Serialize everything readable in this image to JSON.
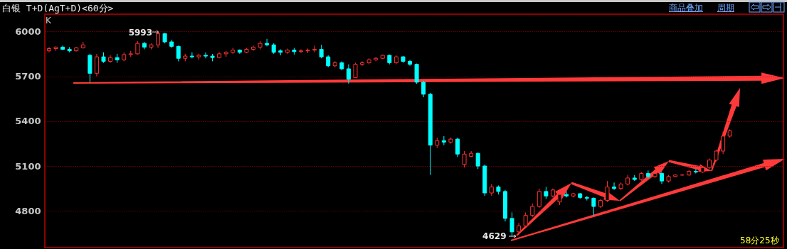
{
  "chart_data": {
    "type": "candlestick",
    "title": "白银 T+D(AgT+D)<60分>",
    "annotations": [
      "K",
      "5993",
      "4629",
      "58分25秒",
      "商品叠加",
      "周期"
    ],
    "categories": [
      null,
      null,
      null,
      null,
      null,
      null,
      null,
      null,
      null,
      null,
      null,
      null,
      null,
      null,
      null,
      null,
      null,
      null,
      null,
      null,
      null,
      null,
      null,
      null,
      null,
      null,
      null,
      null,
      null,
      null,
      null,
      null,
      null,
      null,
      null,
      null,
      null,
      null,
      null,
      null,
      null,
      null,
      null,
      null,
      null,
      null,
      null,
      null,
      null,
      null,
      null,
      null,
      null,
      null,
      null,
      null,
      null,
      null,
      null,
      null,
      null,
      null,
      null,
      null,
      null,
      null,
      null,
      null,
      null,
      null,
      null,
      null,
      null,
      null,
      null,
      null,
      null,
      null,
      null,
      null,
      null,
      null,
      null,
      null,
      null,
      null,
      null,
      null,
      null,
      null,
      null,
      null,
      null,
      null,
      null,
      null,
      null,
      null,
      null,
      null,
      null
    ],
    "ohlc": [
      [
        5870,
        5895,
        5860,
        5885
      ],
      [
        5885,
        5900,
        5870,
        5895
      ],
      [
        5895,
        5905,
        5875,
        5880
      ],
      [
        5880,
        5895,
        5860,
        5870
      ],
      [
        5870,
        5895,
        5865,
        5890
      ],
      [
        5890,
        5930,
        5885,
        5910
      ],
      [
        5840,
        5850,
        5660,
        5720
      ],
      [
        5720,
        5850,
        5700,
        5830
      ],
      [
        5830,
        5860,
        5790,
        5800
      ],
      [
        5800,
        5840,
        5790,
        5825
      ],
      [
        5825,
        5850,
        5790,
        5810
      ],
      [
        5810,
        5860,
        5800,
        5845
      ],
      [
        5845,
        5870,
        5830,
        5850
      ],
      [
        5850,
        5935,
        5845,
        5920
      ],
      [
        5920,
        5930,
        5880,
        5895
      ],
      [
        5895,
        5920,
        5880,
        5910
      ],
      [
        5910,
        5993,
        5890,
        5985
      ],
      [
        5985,
        5990,
        5920,
        5930
      ],
      [
        5930,
        5945,
        5890,
        5900
      ],
      [
        5900,
        5905,
        5800,
        5820
      ],
      [
        5820,
        5850,
        5800,
        5835
      ],
      [
        5835,
        5860,
        5820,
        5830
      ],
      [
        5830,
        5850,
        5810,
        5840
      ],
      [
        5840,
        5860,
        5820,
        5835
      ],
      [
        5835,
        5850,
        5800,
        5825
      ],
      [
        5825,
        5860,
        5820,
        5850
      ],
      [
        5850,
        5870,
        5830,
        5860
      ],
      [
        5860,
        5890,
        5850,
        5875
      ],
      [
        5875,
        5880,
        5850,
        5860
      ],
      [
        5860,
        5890,
        5855,
        5880
      ],
      [
        5880,
        5905,
        5870,
        5895
      ],
      [
        5895,
        5935,
        5880,
        5920
      ],
      [
        5920,
        5950,
        5900,
        5910
      ],
      [
        5910,
        5920,
        5850,
        5860
      ],
      [
        5870,
        5880,
        5840,
        5860
      ],
      [
        5860,
        5885,
        5850,
        5875
      ],
      [
        5875,
        5890,
        5845,
        5865
      ],
      [
        5865,
        5880,
        5855,
        5870
      ],
      [
        5870,
        5885,
        5855,
        5875
      ],
      [
        5875,
        5905,
        5860,
        5880
      ],
      [
        5880,
        5910,
        5820,
        5830
      ],
      [
        5830,
        5840,
        5760,
        5770
      ],
      [
        5770,
        5800,
        5760,
        5790
      ],
      [
        5790,
        5800,
        5740,
        5750
      ],
      [
        5750,
        5780,
        5650,
        5680
      ],
      [
        5690,
        5790,
        5690,
        5780
      ],
      [
        5780,
        5800,
        5770,
        5790
      ],
      [
        5790,
        5820,
        5780,
        5810
      ],
      [
        5810,
        5830,
        5800,
        5820
      ],
      [
        5820,
        5845,
        5815,
        5840
      ],
      [
        5840,
        5845,
        5780,
        5790
      ],
      [
        5790,
        5840,
        5780,
        5830
      ],
      [
        5830,
        5835,
        5790,
        5800
      ],
      [
        5800,
        5810,
        5770,
        5780
      ],
      [
        5780,
        5785,
        5650,
        5660
      ],
      [
        5660,
        5670,
        5560,
        5580
      ],
      [
        5580,
        5590,
        5040,
        5240
      ],
      [
        5240,
        5290,
        5220,
        5270
      ],
      [
        5270,
        5300,
        5240,
        5260
      ],
      [
        5260,
        5290,
        5250,
        5280
      ],
      [
        5280,
        5290,
        5160,
        5180
      ],
      [
        5110,
        5200,
        5090,
        5180
      ],
      [
        5165,
        5200,
        5160,
        5185
      ],
      [
        5185,
        5190,
        5080,
        5100
      ],
      [
        5100,
        5110,
        4900,
        4920
      ],
      [
        4920,
        4980,
        4900,
        4960
      ],
      [
        4960,
        4970,
        4910,
        4930
      ],
      [
        4930,
        4940,
        4730,
        4750
      ],
      [
        4750,
        4790,
        4629,
        4660
      ],
      [
        4660,
        4720,
        4640,
        4700
      ],
      [
        4700,
        4790,
        4690,
        4770
      ],
      [
        4770,
        4850,
        4760,
        4830
      ],
      [
        4830,
        4950,
        4820,
        4930
      ],
      [
        4930,
        4960,
        4880,
        4900
      ],
      [
        4900,
        4950,
        4890,
        4940
      ],
      [
        4860,
        4920,
        4840,
        4910
      ],
      [
        4910,
        4930,
        4890,
        4900
      ],
      [
        4900,
        4920,
        4890,
        4915
      ],
      [
        4915,
        4920,
        4880,
        4890
      ],
      [
        4890,
        4900,
        4870,
        4885
      ],
      [
        4885,
        4890,
        4770,
        4830
      ],
      [
        4830,
        4880,
        4820,
        4870
      ],
      [
        4870,
        5000,
        4860,
        4960
      ],
      [
        4960,
        4990,
        4940,
        4950
      ],
      [
        4950,
        4990,
        4940,
        4980
      ],
      [
        4980,
        5040,
        4970,
        5020
      ],
      [
        5020,
        5040,
        5000,
        5010
      ],
      [
        5010,
        5060,
        5000,
        5050
      ],
      [
        5050,
        5070,
        5020,
        5030
      ],
      [
        5030,
        5060,
        5020,
        5050
      ],
      [
        5050,
        5060,
        4980,
        5000
      ],
      [
        5000,
        5040,
        4990,
        5030
      ],
      [
        5030,
        5045,
        5025,
        5040
      ],
      [
        5040,
        5045,
        5035,
        5040
      ],
      [
        5040,
        5075,
        5035,
        5065
      ],
      [
        5065,
        5080,
        5050,
        5060
      ],
      [
        5060,
        5100,
        5055,
        5090
      ],
      [
        5090,
        5150,
        5080,
        5140
      ],
      [
        5140,
        5210,
        5130,
        5200
      ],
      [
        5200,
        5330,
        5180,
        5300
      ],
      [
        5300,
        5345,
        5290,
        5335
      ]
    ],
    "colors": [
      "#ff3232",
      "#ff3232",
      "#00ffff",
      "#00ffff",
      "#ff3232",
      "#ff3232",
      "#00ffff",
      "#ff3232",
      "#00ffff",
      "#ff3232",
      "#00ffff",
      "#ff3232",
      "#ff3232",
      "#ff3232",
      "#00ffff",
      "#ff3232",
      "#ff3232",
      "#00ffff",
      "#00ffff",
      "#00ffff",
      "#ff3232",
      "#00ffff",
      "#ff3232",
      "#00ffff",
      "#00ffff",
      "#ff3232",
      "#ff3232",
      "#ff3232",
      "#00ffff",
      "#ff3232",
      "#ff3232",
      "#ff3232",
      "#00ffff",
      "#00ffff",
      "#00ffff",
      "#ff3232",
      "#00ffff",
      "#ff3232",
      "#ff3232",
      "#ff3232",
      "#00ffff",
      "#00ffff",
      "#ff3232",
      "#00ffff",
      "#00ffff",
      "#ff3232",
      "#ff3232",
      "#ff3232",
      "#ff3232",
      "#ff3232",
      "#00ffff",
      "#ff3232",
      "#00ffff",
      "#00ffff",
      "#00ffff",
      "#00ffff",
      "#00ffff",
      "#ff3232",
      "#00ffff",
      "#ff3232",
      "#00ffff",
      "#ff3232",
      "#ff3232",
      "#00ffff",
      "#00ffff",
      "#ff3232",
      "#00ffff",
      "#00ffff",
      "#00ffff",
      "#ff3232",
      "#ff3232",
      "#ff3232",
      "#ff3232",
      "#00ffff",
      "#ff3232",
      "#ff3232",
      "#00ffff",
      "#ff3232",
      "#00ffff",
      "#00ffff",
      "#00ffff",
      "#ff3232",
      "#ff3232",
      "#00ffff",
      "#ff3232",
      "#ff3232",
      "#00ffff",
      "#ff3232",
      "#00ffff",
      "#ff3232",
      "#00ffff",
      "#ff3232",
      "#ff3232",
      "#ff3232",
      "#ff3232",
      "#00ffff",
      "#ff3232",
      "#ff3232",
      "#ff3232",
      "#ff3232",
      "#ff3232"
    ],
    "ylim": [
      4555,
      6115
    ],
    "yticks": [
      4800,
      5100,
      5400,
      5700,
      6000
    ],
    "grid": "y",
    "tick_labels": "y"
  }
}
